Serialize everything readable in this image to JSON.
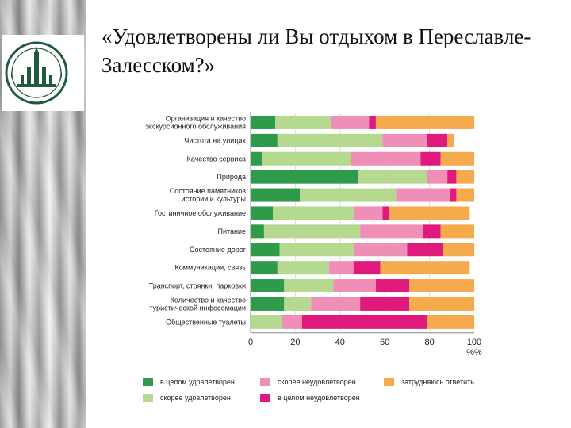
{
  "slide": {
    "title": "«Удовлетворены ли Вы отдыхом в Переславле-Залесском?»"
  },
  "logo": {
    "icon": "university-seal-icon",
    "color": "#1f5a3a"
  },
  "chart_data": {
    "type": "bar",
    "orientation": "horizontal",
    "stacked": true,
    "categories": [
      [
        "Организация и качество",
        "экскурсионного обслуживания"
      ],
      [
        "Чистота на улицах"
      ],
      [
        "Качество сервиса"
      ],
      [
        "Природа"
      ],
      [
        "Состояние памятников",
        "истории и культуры"
      ],
      [
        "Гостиничное обслуживание"
      ],
      [
        "Питание"
      ],
      [
        "Состояние дорог"
      ],
      [
        "Коммуникации, связь"
      ],
      [
        "Транспорт, стоянки, парковки"
      ],
      [
        "Количество и качество",
        "туристической инфосомации"
      ],
      [
        "Общественные туалеты"
      ]
    ],
    "series": [
      {
        "name": "в целом удовлетворен",
        "color": "#2e9a4a",
        "values": [
          11,
          12,
          5,
          48,
          22,
          10,
          6,
          13,
          12,
          15,
          15,
          0
        ]
      },
      {
        "name": "скорее удовлетворен",
        "color": "#b5d98e",
        "values": [
          25,
          47,
          40,
          31,
          43,
          36,
          43,
          33,
          23,
          22,
          12,
          14
        ]
      },
      {
        "name": "скорее неудовлетворен",
        "color": "#ef8fb7",
        "values": [
          17,
          20,
          31,
          9,
          24,
          13,
          28,
          24,
          11,
          19,
          22,
          9
        ]
      },
      {
        "name": "в целом неудовлетворен",
        "color": "#e01a7d",
        "values": [
          3,
          9,
          9,
          4,
          3,
          3,
          8,
          16,
          12,
          15,
          22,
          56
        ]
      },
      {
        "name": "затрудняюсь ответить",
        "color": "#f6aa4e",
        "values": [
          44,
          3,
          15,
          8,
          8,
          36,
          15,
          14,
          40,
          29,
          29,
          21
        ]
      }
    ],
    "xlim": [
      0,
      100
    ],
    "xticks": [
      "0",
      "20",
      "40",
      "60",
      "80",
      "100"
    ],
    "x_unit_label": "%%",
    "legend_position": "bottom",
    "legend": [
      {
        "label": "в целом удовлетворен",
        "color": "#2e9a4a"
      },
      {
        "label": "скорее неудовлетворен",
        "color": "#ef8fb7"
      },
      {
        "label": "затрудняюсь ответить",
        "color": "#f6aa4e"
      },
      {
        "label": "скорее удовлетворен",
        "color": "#b5d98e"
      },
      {
        "label": "в целом неудовлетворен",
        "color": "#e01a7d"
      }
    ]
  }
}
